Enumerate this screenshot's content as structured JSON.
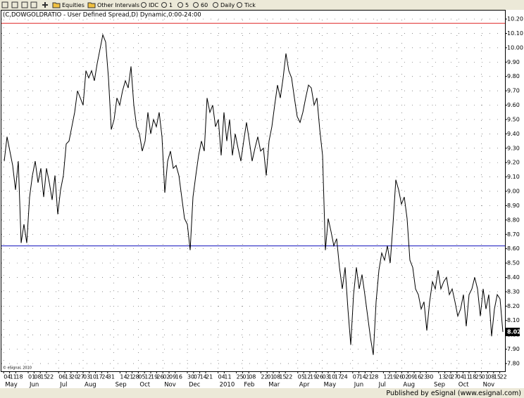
{
  "toolbar": [
    "Equities",
    "Other Intervals",
    "IDC",
    "1",
    "5",
    "60",
    "Daily",
    "Tick"
  ],
  "footer": "Published by eSignal (www.esignal.com)",
  "chart_data": {
    "type": "line",
    "title": "(C,DOWGOLDRATIO - User Defined Spread,D) Dynamic,0:00-24:00",
    "watermark": "© eSignal, 2010",
    "color": "#000000",
    "values": [
      9.21,
      9.38,
      9.28,
      9.18,
      9.01,
      9.21,
      8.64,
      8.77,
      8.64,
      8.96,
      9.11,
      9.21,
      9.06,
      9.16,
      8.96,
      9.16,
      9.06,
      8.94,
      9.11,
      8.84,
      9.01,
      9.11,
      9.33,
      9.35,
      9.45,
      9.55,
      9.7,
      9.65,
      9.6,
      9.84,
      9.79,
      9.84,
      9.77,
      9.89,
      9.99,
      10.09,
      10.04,
      9.79,
      9.43,
      9.5,
      9.65,
      9.6,
      9.7,
      9.77,
      9.72,
      9.87,
      9.6,
      9.45,
      9.4,
      9.28,
      9.35,
      9.55,
      9.4,
      9.5,
      9.45,
      9.55,
      9.38,
      8.99,
      9.21,
      9.28,
      9.16,
      9.18,
      9.11,
      8.96,
      8.81,
      8.77,
      8.59,
      8.96,
      9.11,
      9.25,
      9.35,
      9.28,
      9.65,
      9.55,
      9.6,
      9.45,
      9.5,
      9.25,
      9.55,
      9.35,
      9.5,
      9.25,
      9.4,
      9.3,
      9.21,
      9.35,
      9.48,
      9.35,
      9.21,
      9.3,
      9.38,
      9.28,
      9.3,
      9.11,
      9.35,
      9.45,
      9.6,
      9.74,
      9.65,
      9.79,
      9.96,
      9.84,
      9.79,
      9.65,
      9.52,
      9.48,
      9.55,
      9.65,
      9.74,
      9.72,
      9.6,
      9.65,
      9.43,
      9.25,
      8.59,
      8.81,
      8.72,
      8.62,
      8.67,
      8.47,
      8.32,
      8.47,
      8.18,
      7.93,
      8.28,
      8.47,
      8.32,
      8.42,
      8.28,
      8.13,
      7.98,
      7.86,
      8.23,
      8.45,
      8.57,
      8.52,
      8.62,
      8.5,
      8.77,
      9.08,
      9.01,
      8.91,
      8.96,
      8.81,
      8.52,
      8.47,
      8.32,
      8.28,
      8.18,
      8.23,
      8.03,
      8.23,
      8.37,
      8.32,
      8.45,
      8.32,
      8.37,
      8.4,
      8.28,
      8.32,
      8.23,
      8.13,
      8.18,
      8.28,
      8.06,
      8.28,
      8.32,
      8.4,
      8.32,
      8.13,
      8.32,
      8.18,
      8.28,
      7.99,
      8.18,
      8.28,
      8.25,
      8.02
    ],
    "xlim": [
      -1,
      177.75
    ],
    "ylim": [
      7.746,
      10.264
    ],
    "yticks": [
      {
        "value": 7.8,
        "label": "7.80"
      },
      {
        "value": 7.9,
        "label": "7.90"
      },
      {
        "value": 8.0,
        "label": "8.00"
      },
      {
        "value": 8.1,
        "label": "8.10"
      },
      {
        "value": 8.2,
        "label": "8.20"
      },
      {
        "value": 8.3,
        "label": "8.30"
      },
      {
        "value": 8.4,
        "label": "8.40"
      },
      {
        "value": 8.5,
        "label": "8.50"
      },
      {
        "value": 8.6,
        "label": "8.60"
      },
      {
        "value": 8.7,
        "label": "8.70"
      },
      {
        "value": 8.8,
        "label": "8.80"
      },
      {
        "value": 8.9,
        "label": "8.90"
      },
      {
        "value": 9.0,
        "label": "9.00"
      },
      {
        "value": 9.1,
        "label": "9.10"
      },
      {
        "value": 9.2,
        "label": "9.20"
      },
      {
        "value": 9.3,
        "label": "9.30"
      },
      {
        "value": 9.4,
        "label": "9.40"
      },
      {
        "value": 9.5,
        "label": "9.50"
      },
      {
        "value": 9.6,
        "label": "9.60"
      },
      {
        "value": 9.7,
        "label": "9.70"
      },
      {
        "value": 9.8,
        "label": "9.80"
      },
      {
        "value": 9.9,
        "label": "9.90"
      },
      {
        "value": 10.0,
        "label": "10.00"
      },
      {
        "value": 10.1,
        "label": "10.10"
      },
      {
        "value": 10.2,
        "label": "10.20"
      }
    ],
    "xticks": [
      {
        "value": -0.2,
        "label": "04"
      },
      {
        "value": 1.9,
        "label": "11"
      },
      {
        "value": 4.1,
        "label": "18"
      },
      {
        "value": 8.5,
        "label": "01"
      },
      {
        "value": 10.6,
        "label": "08"
      },
      {
        "value": 12.8,
        "label": "15"
      },
      {
        "value": 15.0,
        "label": "22"
      },
      {
        "value": 19.3,
        "label": "06"
      },
      {
        "value": 21.5,
        "label": "13"
      },
      {
        "value": 23.7,
        "label": "20"
      },
      {
        "value": 25.9,
        "label": "27"
      },
      {
        "value": 28.0,
        "label": "03"
      },
      {
        "value": 30.2,
        "label": "10"
      },
      {
        "value": 32.4,
        "label": "17"
      },
      {
        "value": 34.6,
        "label": "24"
      },
      {
        "value": 36.7,
        "label": "31"
      },
      {
        "value": 41.1,
        "label": "14"
      },
      {
        "value": 43.3,
        "label": "21"
      },
      {
        "value": 45.4,
        "label": "28"
      },
      {
        "value": 47.6,
        "label": "05"
      },
      {
        "value": 49.8,
        "label": "12"
      },
      {
        "value": 52.0,
        "label": "19"
      },
      {
        "value": 54.1,
        "label": "26"
      },
      {
        "value": 56.3,
        "label": "02"
      },
      {
        "value": 58.5,
        "label": "09"
      },
      {
        "value": 60.7,
        "label": "16"
      },
      {
        "value": 65.0,
        "label": "30"
      },
      {
        "value": 67.2,
        "label": "07"
      },
      {
        "value": 69.4,
        "label": "14"
      },
      {
        "value": 71.5,
        "label": "21"
      },
      {
        "value": 75.9,
        "label": "04"
      },
      {
        "value": 78.1,
        "label": "11"
      },
      {
        "value": 82.4,
        "label": "25"
      },
      {
        "value": 84.6,
        "label": "01"
      },
      {
        "value": 86.8,
        "label": "08"
      },
      {
        "value": 91.1,
        "label": "22"
      },
      {
        "value": 93.3,
        "label": "01"
      },
      {
        "value": 95.5,
        "label": "08"
      },
      {
        "value": 97.6,
        "label": "15"
      },
      {
        "value": 99.8,
        "label": "22"
      },
      {
        "value": 104.2,
        "label": "05"
      },
      {
        "value": 106.3,
        "label": "12"
      },
      {
        "value": 108.5,
        "label": "19"
      },
      {
        "value": 110.7,
        "label": "26"
      },
      {
        "value": 112.9,
        "label": "03"
      },
      {
        "value": 115.0,
        "label": "10"
      },
      {
        "value": 117.2,
        "label": "17"
      },
      {
        "value": 119.4,
        "label": "24"
      },
      {
        "value": 123.7,
        "label": "07"
      },
      {
        "value": 125.9,
        "label": "14"
      },
      {
        "value": 128.1,
        "label": "21"
      },
      {
        "value": 130.3,
        "label": "28"
      },
      {
        "value": 134.6,
        "label": "12"
      },
      {
        "value": 136.8,
        "label": "19"
      },
      {
        "value": 139.0,
        "label": "26"
      },
      {
        "value": 141.1,
        "label": "02"
      },
      {
        "value": 143.3,
        "label": "09"
      },
      {
        "value": 145.5,
        "label": "16"
      },
      {
        "value": 147.7,
        "label": "23"
      },
      {
        "value": 149.8,
        "label": "30"
      },
      {
        "value": 154.2,
        "label": "13"
      },
      {
        "value": 156.4,
        "label": "20"
      },
      {
        "value": 158.5,
        "label": "27"
      },
      {
        "value": 160.7,
        "label": "04"
      },
      {
        "value": 162.9,
        "label": "11"
      },
      {
        "value": 165.0,
        "label": "18"
      },
      {
        "value": 167.2,
        "label": "25"
      },
      {
        "value": 169.4,
        "label": "01"
      },
      {
        "value": 171.6,
        "label": "08"
      },
      {
        "value": 173.7,
        "label": "15"
      },
      {
        "value": 175.9,
        "label": "22"
      }
    ],
    "month_ticks": [
      {
        "value": -0.2,
        "label": "May"
      },
      {
        "value": 8.5,
        "label": "Jun"
      },
      {
        "value": 19.3,
        "label": "Jul"
      },
      {
        "value": 28.0,
        "label": "Aug"
      },
      {
        "value": 38.9,
        "label": "Sep"
      },
      {
        "value": 47.6,
        "label": "Oct"
      },
      {
        "value": 56.3,
        "label": "Nov"
      },
      {
        "value": 65.0,
        "label": "Dec"
      },
      {
        "value": 75.9,
        "label": "2010"
      },
      {
        "value": 84.6,
        "label": "Feb"
      },
      {
        "value": 93.3,
        "label": "Mar"
      },
      {
        "value": 104.2,
        "label": "Apr"
      },
      {
        "value": 112.9,
        "label": "May"
      },
      {
        "value": 123.7,
        "label": "Jun"
      },
      {
        "value": 132.4,
        "label": "Jul"
      },
      {
        "value": 141.1,
        "label": "Aug"
      },
      {
        "value": 152.0,
        "label": "Sep"
      },
      {
        "value": 160.7,
        "label": "Oct"
      },
      {
        "value": 169.4,
        "label": "Nov"
      }
    ],
    "hlines": [
      {
        "value": 10.17,
        "color": "#e23a3a"
      },
      {
        "value": 8.62,
        "color": "#3c3cc8"
      }
    ],
    "grid": true
  }
}
